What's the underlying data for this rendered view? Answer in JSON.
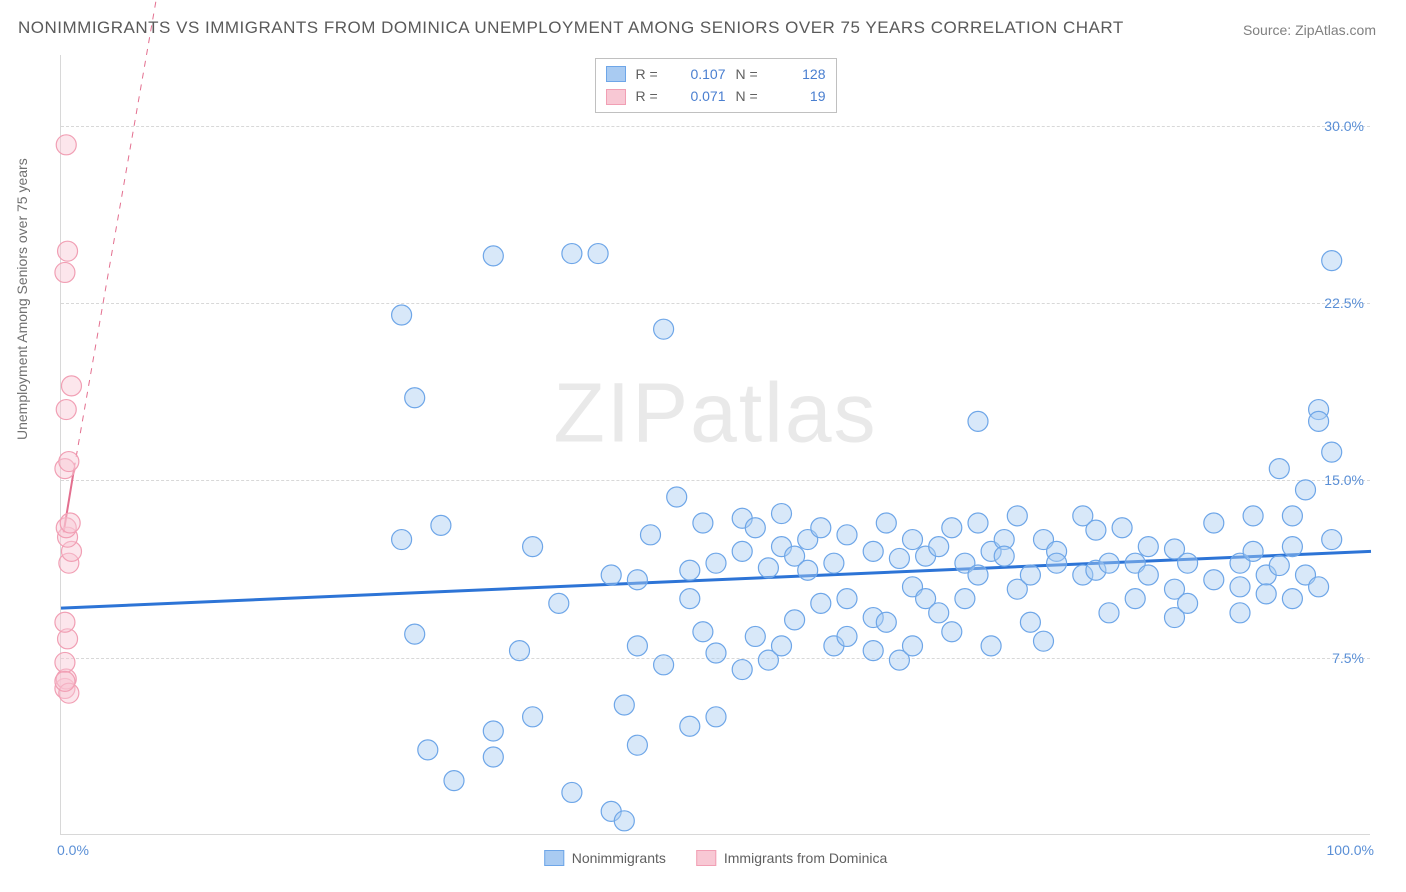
{
  "title": "NONIMMIGRANTS VS IMMIGRANTS FROM DOMINICA UNEMPLOYMENT AMONG SENIORS OVER 75 YEARS CORRELATION CHART",
  "source_label": "Source: ",
  "source_name": "ZipAtlas.com",
  "watermark_bold": "ZIP",
  "watermark_thin": "atlas",
  "ylabel": "Unemployment Among Seniors over 75 years",
  "chart": {
    "type": "scatter",
    "background_color": "#ffffff",
    "grid_color": "#d8d8d8",
    "grid_dash": "5,5",
    "xlim": [
      0,
      100
    ],
    "ylim": [
      0,
      33
    ],
    "x_ticks": [
      {
        "v": 0,
        "label": "0.0%"
      },
      {
        "v": 100,
        "label": "100.0%"
      }
    ],
    "y_ticks": [
      {
        "v": 7.5,
        "label": "7.5%"
      },
      {
        "v": 15.0,
        "label": "15.0%"
      },
      {
        "v": 22.5,
        "label": "22.5%"
      },
      {
        "v": 30.0,
        "label": "30.0%"
      }
    ],
    "tick_color": "#5a8fd6",
    "tick_fontsize": 14,
    "label_color": "#707070",
    "label_fontsize": 14,
    "marker_radius": 10,
    "marker_opacity": 0.45,
    "series": [
      {
        "name": "Nonimmigrants",
        "R": "0.107",
        "N": "128",
        "color_stroke": "#6ea6e8",
        "color_fill": "#a9cbf2",
        "trend": {
          "x1": 0,
          "y1": 9.6,
          "x2": 100,
          "y2": 12.0,
          "color": "#2d74d6",
          "width": 3
        },
        "points": [
          [
            26,
            22.0
          ],
          [
            26,
            12.5
          ],
          [
            27,
            18.5
          ],
          [
            27,
            8.5
          ],
          [
            28,
            3.6
          ],
          [
            29,
            13.1
          ],
          [
            30,
            2.3
          ],
          [
            33,
            24.5
          ],
          [
            33,
            4.4
          ],
          [
            33,
            3.3
          ],
          [
            35,
            7.8
          ],
          [
            36,
            5.0
          ],
          [
            36,
            12.2
          ],
          [
            38,
            9.8
          ],
          [
            39,
            1.8
          ],
          [
            39,
            24.6
          ],
          [
            41,
            24.6
          ],
          [
            42,
            11.0
          ],
          [
            42,
            1.0
          ],
          [
            43,
            5.5
          ],
          [
            43,
            0.6
          ],
          [
            44,
            10.8
          ],
          [
            44,
            8.0
          ],
          [
            44,
            3.8
          ],
          [
            45,
            12.7
          ],
          [
            46,
            21.4
          ],
          [
            46,
            7.2
          ],
          [
            47,
            14.3
          ],
          [
            48,
            11.2
          ],
          [
            48,
            10.0
          ],
          [
            48,
            4.6
          ],
          [
            49,
            13.2
          ],
          [
            49,
            8.6
          ],
          [
            50,
            11.5
          ],
          [
            50,
            7.7
          ],
          [
            50,
            5.0
          ],
          [
            52,
            13.4
          ],
          [
            52,
            12.0
          ],
          [
            52,
            7.0
          ],
          [
            53,
            13.0
          ],
          [
            53,
            8.4
          ],
          [
            54,
            11.3
          ],
          [
            54,
            7.4
          ],
          [
            55,
            13.6
          ],
          [
            55,
            12.2
          ],
          [
            55,
            8.0
          ],
          [
            56,
            11.8
          ],
          [
            56,
            9.1
          ],
          [
            57,
            12.5
          ],
          [
            57,
            11.2
          ],
          [
            58,
            13.0
          ],
          [
            58,
            9.8
          ],
          [
            59,
            11.5
          ],
          [
            59,
            8.0
          ],
          [
            60,
            12.7
          ],
          [
            60,
            8.4
          ],
          [
            60,
            10.0
          ],
          [
            62,
            12.0
          ],
          [
            62,
            9.2
          ],
          [
            62,
            7.8
          ],
          [
            63,
            13.2
          ],
          [
            63,
            9.0
          ],
          [
            64,
            11.7
          ],
          [
            64,
            7.4
          ],
          [
            65,
            12.5
          ],
          [
            65,
            10.5
          ],
          [
            65,
            8.0
          ],
          [
            66,
            11.8
          ],
          [
            66,
            10.0
          ],
          [
            67,
            12.2
          ],
          [
            67,
            9.4
          ],
          [
            68,
            13.0
          ],
          [
            68,
            8.6
          ],
          [
            69,
            11.5
          ],
          [
            69,
            10.0
          ],
          [
            70,
            17.5
          ],
          [
            70,
            13.2
          ],
          [
            70,
            11.0
          ],
          [
            71,
            12.0
          ],
          [
            71,
            8.0
          ],
          [
            72,
            12.5
          ],
          [
            72,
            11.8
          ],
          [
            73,
            13.5
          ],
          [
            73,
            10.4
          ],
          [
            74,
            11.0
          ],
          [
            74,
            9.0
          ],
          [
            75,
            12.5
          ],
          [
            75,
            8.2
          ],
          [
            76,
            12.0
          ],
          [
            76,
            11.5
          ],
          [
            78,
            11.0
          ],
          [
            78,
            13.5
          ],
          [
            79,
            12.9
          ],
          [
            79,
            11.2
          ],
          [
            80,
            11.5
          ],
          [
            80,
            9.4
          ],
          [
            81,
            13.0
          ],
          [
            82,
            11.5
          ],
          [
            82,
            10.0
          ],
          [
            83,
            12.2
          ],
          [
            83,
            11.0
          ],
          [
            85,
            10.4
          ],
          [
            85,
            12.1
          ],
          [
            85,
            9.2
          ],
          [
            86,
            11.5
          ],
          [
            86,
            9.8
          ],
          [
            88,
            10.8
          ],
          [
            88,
            13.2
          ],
          [
            90,
            9.4
          ],
          [
            90,
            11.5
          ],
          [
            90,
            10.5
          ],
          [
            91,
            12.0
          ],
          [
            91,
            13.5
          ],
          [
            92,
            11.0
          ],
          [
            92,
            10.2
          ],
          [
            93,
            11.4
          ],
          [
            93,
            15.5
          ],
          [
            94,
            10.0
          ],
          [
            94,
            12.2
          ],
          [
            94,
            13.5
          ],
          [
            95,
            11.0
          ],
          [
            95,
            14.6
          ],
          [
            96,
            10.5
          ],
          [
            96,
            18.0
          ],
          [
            96,
            17.5
          ],
          [
            97,
            12.5
          ],
          [
            97,
            16.2
          ],
          [
            97,
            24.3
          ]
        ]
      },
      {
        "name": "Immigrants from Dominica",
        "R": "0.071",
        "N": "19",
        "color_stroke": "#f19fb4",
        "color_fill": "#f8c8d4",
        "trend": {
          "x1": 0.2,
          "y1": 12.8,
          "x2": 1.0,
          "y2": 15.5,
          "color": "#e36f8f",
          "width": 2,
          "solid_to": 1.0,
          "dash_to_x": 10,
          "dash_to_y": 44
        },
        "points": [
          [
            0.3,
            6.2
          ],
          [
            0.4,
            6.6
          ],
          [
            0.3,
            7.3
          ],
          [
            0.5,
            8.3
          ],
          [
            0.3,
            9.0
          ],
          [
            0.6,
            11.5
          ],
          [
            0.8,
            12.0
          ],
          [
            0.5,
            12.6
          ],
          [
            0.4,
            13.0
          ],
          [
            0.7,
            13.2
          ],
          [
            0.3,
            15.5
          ],
          [
            0.6,
            15.8
          ],
          [
            0.4,
            18.0
          ],
          [
            0.8,
            19.0
          ],
          [
            0.3,
            23.8
          ],
          [
            0.5,
            24.7
          ],
          [
            0.4,
            29.2
          ],
          [
            0.6,
            6.0
          ],
          [
            0.3,
            6.5
          ]
        ]
      }
    ]
  },
  "legend_bottom": [
    {
      "label": "Nonimmigrants",
      "fill": "#a9cbf2",
      "stroke": "#6ea6e8"
    },
    {
      "label": "Immigrants from Dominica",
      "fill": "#f8c8d4",
      "stroke": "#f19fb4"
    }
  ]
}
